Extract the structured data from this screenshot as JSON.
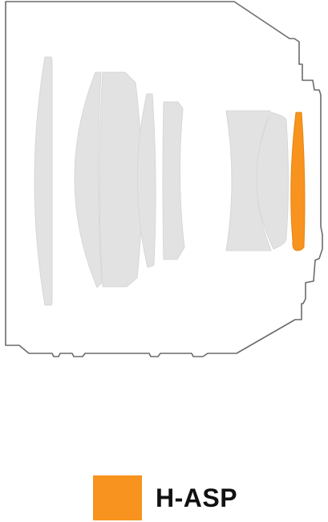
{
  "diagram": {
    "colors": {
      "outline": "#6b6b6b",
      "element": "#e2e2e2",
      "element_edge": "#d7d7d7",
      "highlight": "#f7931e"
    },
    "elements": [
      "lens-element-1",
      "lens-element-2",
      "lens-element-3",
      "lens-element-4",
      "lens-element-5",
      "lens-element-6",
      "lens-element-7",
      "lens-element-8-h-asp"
    ]
  },
  "legend": {
    "label": "H-ASP",
    "color": "#f7931e"
  }
}
